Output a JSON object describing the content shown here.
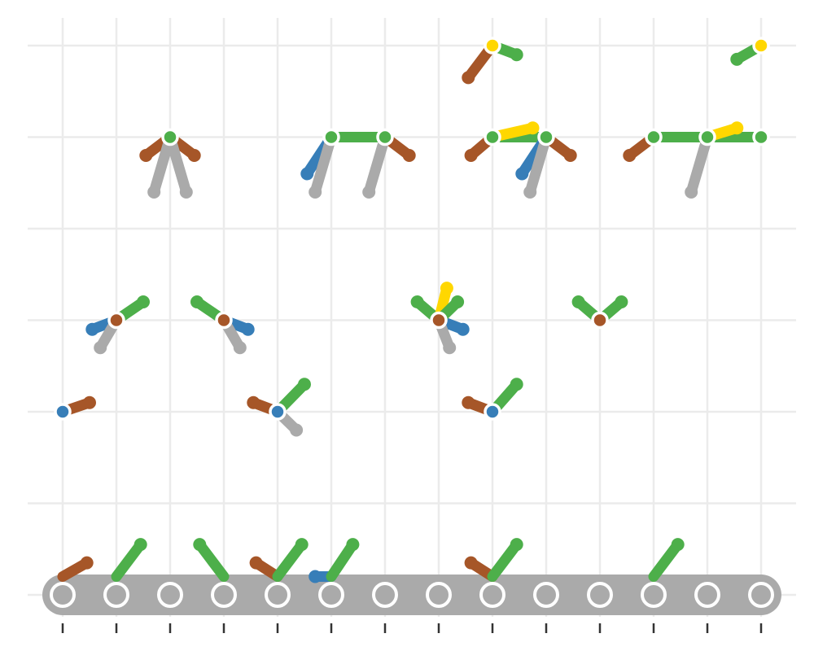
{
  "colors": {
    "background": "#ffffff",
    "grid": "#ebebeb",
    "green": "#4daf4a",
    "brown": "#a65628",
    "blue": "#377eb8",
    "gray": "#aaaaaa",
    "yellow": "#ffd700",
    "tick": "#333333"
  },
  "chart_data": {
    "type": "scatter",
    "title": "",
    "xlabel": "",
    "ylabel": "",
    "x_categories": 14,
    "y_levels": 7,
    "grid": "on",
    "tick_labels": "none",
    "legend": "none",
    "base_row": {
      "level": 0,
      "nodes": [
        1,
        2,
        3,
        4,
        5,
        6,
        7,
        8,
        9,
        10,
        11,
        12,
        13,
        14
      ],
      "node_color": "gray"
    },
    "nodes": [
      {
        "x": 1,
        "y": 2,
        "color": "blue"
      },
      {
        "x": 2,
        "y": 3,
        "color": "brown"
      },
      {
        "x": 3,
        "y": 5,
        "color": "green"
      },
      {
        "x": 4,
        "y": 3,
        "color": "brown"
      },
      {
        "x": 5,
        "y": 2,
        "color": "blue"
      },
      {
        "x": 6,
        "y": 5,
        "color": "green"
      },
      {
        "x": 7,
        "y": 5,
        "color": "green"
      },
      {
        "x": 8,
        "y": 3,
        "color": "brown"
      },
      {
        "x": 9,
        "y": 2,
        "color": "blue"
      },
      {
        "x": 9,
        "y": 5,
        "color": "green"
      },
      {
        "x": 9,
        "y": 6,
        "color": "yellow"
      },
      {
        "x": 10,
        "y": 5,
        "color": "green"
      },
      {
        "x": 11,
        "y": 3,
        "color": "brown"
      },
      {
        "x": 12,
        "y": 5,
        "color": "green"
      },
      {
        "x": 13,
        "y": 5,
        "color": "green"
      },
      {
        "x": 14,
        "y": 5,
        "color": "green"
      },
      {
        "x": 14,
        "y": 6,
        "color": "yellow"
      }
    ],
    "edges": [
      {
        "x1": 1,
        "y1": 0.2,
        "x2": 1.45,
        "y2": 0.35,
        "color": "brown"
      },
      {
        "x1": 2,
        "y1": 0.2,
        "x2": 2.45,
        "y2": 0.55,
        "color": "green"
      },
      {
        "x1": 4,
        "y1": 0.2,
        "x2": 3.55,
        "y2": 0.55,
        "color": "green"
      },
      {
        "x1": 5,
        "y1": 0.2,
        "x2": 4.6,
        "y2": 0.35,
        "color": "brown"
      },
      {
        "x1": 5,
        "y1": 0.2,
        "x2": 5.45,
        "y2": 0.55,
        "color": "green"
      },
      {
        "x1": 6,
        "y1": 0.2,
        "x2": 5.7,
        "y2": 0.2,
        "color": "blue"
      },
      {
        "x1": 6,
        "y1": 0.2,
        "x2": 6.4,
        "y2": 0.55,
        "color": "green"
      },
      {
        "x1": 9,
        "y1": 0.2,
        "x2": 8.6,
        "y2": 0.35,
        "color": "brown"
      },
      {
        "x1": 9,
        "y1": 0.2,
        "x2": 9.45,
        "y2": 0.55,
        "color": "green"
      },
      {
        "x1": 12,
        "y1": 0.2,
        "x2": 12.45,
        "y2": 0.55,
        "color": "green"
      },
      {
        "x1": 1,
        "y1": 2,
        "x2": 1.5,
        "y2": 2.1,
        "color": "brown"
      },
      {
        "x1": 5,
        "y1": 2,
        "x2": 4.55,
        "y2": 2.1,
        "color": "brown"
      },
      {
        "x1": 5,
        "y1": 2,
        "x2": 5.5,
        "y2": 2.3,
        "color": "green"
      },
      {
        "x1": 5,
        "y1": 2,
        "x2": 5.35,
        "y2": 1.8,
        "color": "gray"
      },
      {
        "x1": 9,
        "y1": 2,
        "x2": 8.55,
        "y2": 2.1,
        "color": "brown"
      },
      {
        "x1": 9,
        "y1": 2,
        "x2": 9.45,
        "y2": 2.3,
        "color": "green"
      },
      {
        "x1": 2,
        "y1": 3,
        "x2": 2.5,
        "y2": 3.2,
        "color": "green"
      },
      {
        "x1": 2,
        "y1": 3,
        "x2": 1.55,
        "y2": 2.9,
        "color": "blue"
      },
      {
        "x1": 2,
        "y1": 3,
        "x2": 1.7,
        "y2": 2.7,
        "color": "gray"
      },
      {
        "x1": 4,
        "y1": 3,
        "x2": 3.5,
        "y2": 3.2,
        "color": "green"
      },
      {
        "x1": 4,
        "y1": 3,
        "x2": 4.45,
        "y2": 2.9,
        "color": "blue"
      },
      {
        "x1": 4,
        "y1": 3,
        "x2": 4.3,
        "y2": 2.7,
        "color": "gray"
      },
      {
        "x1": 8,
        "y1": 3,
        "x2": 7.6,
        "y2": 3.2,
        "color": "green"
      },
      {
        "x1": 8,
        "y1": 3,
        "x2": 8.45,
        "y2": 2.9,
        "color": "blue"
      },
      {
        "x1": 8,
        "y1": 3,
        "x2": 8.15,
        "y2": 3.35,
        "color": "yellow"
      },
      {
        "x1": 8,
        "y1": 3,
        "x2": 8.35,
        "y2": 3.2,
        "color": "green"
      },
      {
        "x1": 8,
        "y1": 3,
        "x2": 8.2,
        "y2": 2.7,
        "color": "gray"
      },
      {
        "x1": 11,
        "y1": 3,
        "x2": 10.6,
        "y2": 3.2,
        "color": "green"
      },
      {
        "x1": 11,
        "y1": 3,
        "x2": 11.4,
        "y2": 3.2,
        "color": "green"
      },
      {
        "x1": 3,
        "y1": 5,
        "x2": 2.55,
        "y2": 4.8,
        "color": "brown"
      },
      {
        "x1": 3,
        "y1": 5,
        "x2": 3.45,
        "y2": 4.8,
        "color": "brown"
      },
      {
        "x1": 3,
        "y1": 5,
        "x2": 2.7,
        "y2": 4.4,
        "color": "gray"
      },
      {
        "x1": 3,
        "y1": 5,
        "x2": 3.3,
        "y2": 4.4,
        "color": "gray"
      },
      {
        "x1": 6,
        "y1": 5,
        "x2": 7,
        "y2": 5,
        "color": "green"
      },
      {
        "x1": 6,
        "y1": 5,
        "x2": 5.55,
        "y2": 4.6,
        "color": "blue"
      },
      {
        "x1": 6,
        "y1": 5,
        "x2": 5.7,
        "y2": 4.4,
        "color": "gray"
      },
      {
        "x1": 7,
        "y1": 5,
        "x2": 7.45,
        "y2": 4.8,
        "color": "brown"
      },
      {
        "x1": 7,
        "y1": 5,
        "x2": 6.7,
        "y2": 4.4,
        "color": "gray"
      },
      {
        "x1": 9,
        "y1": 5,
        "x2": 10,
        "y2": 5,
        "color": "green"
      },
      {
        "x1": 9,
        "y1": 5,
        "x2": 8.6,
        "y2": 4.8,
        "color": "brown"
      },
      {
        "x1": 9,
        "y1": 5,
        "x2": 9.75,
        "y2": 5.1,
        "color": "yellow"
      },
      {
        "x1": 10,
        "y1": 5,
        "x2": 9.55,
        "y2": 4.6,
        "color": "blue"
      },
      {
        "x1": 10,
        "y1": 5,
        "x2": 10.45,
        "y2": 4.8,
        "color": "brown"
      },
      {
        "x1": 10,
        "y1": 5,
        "x2": 9.7,
        "y2": 4.4,
        "color": "gray"
      },
      {
        "x1": 12,
        "y1": 5,
        "x2": 14,
        "y2": 5,
        "color": "green"
      },
      {
        "x1": 12,
        "y1": 5,
        "x2": 11.55,
        "y2": 4.8,
        "color": "brown"
      },
      {
        "x1": 13,
        "y1": 5,
        "x2": 13.55,
        "y2": 5.1,
        "color": "yellow"
      },
      {
        "x1": 13,
        "y1": 5,
        "x2": 12.7,
        "y2": 4.4,
        "color": "gray"
      },
      {
        "x1": 9,
        "y1": 6,
        "x2": 8.55,
        "y2": 5.65,
        "color": "brown"
      },
      {
        "x1": 9,
        "y1": 6,
        "x2": 9.45,
        "y2": 5.9,
        "color": "green"
      },
      {
        "x1": 14,
        "y1": 6,
        "x2": 13.55,
        "y2": 5.85,
        "color": "green"
      }
    ]
  }
}
